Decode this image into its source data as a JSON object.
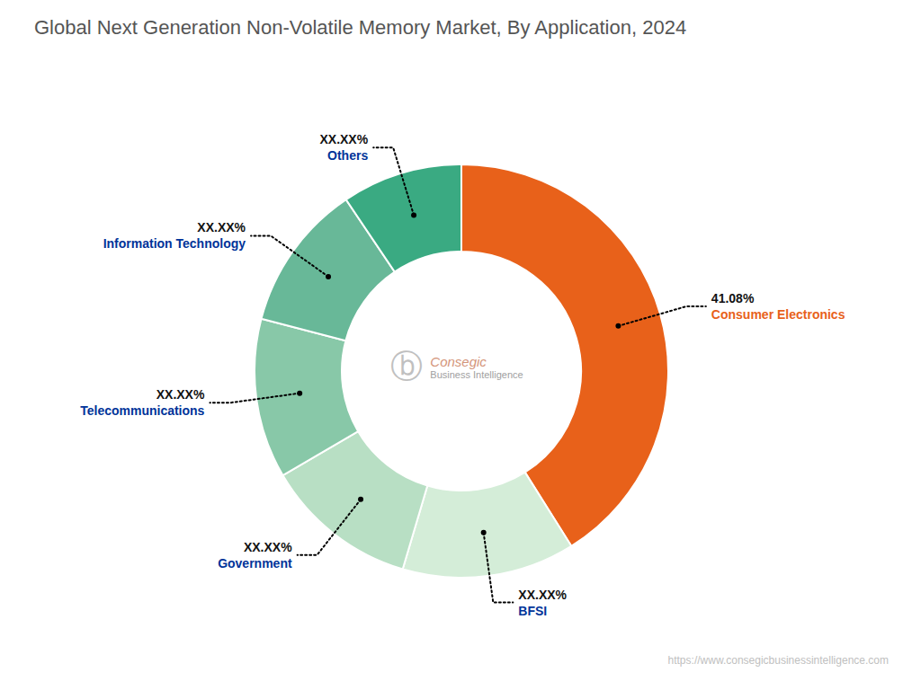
{
  "chart_data": {
    "type": "pie",
    "title": "Global Next Generation Non-Volatile Memory Market, By Application, 2024",
    "categories": [
      "Consumer Electronics",
      "BFSI",
      "Government",
      "Telecommunications",
      "Information Technology",
      "Others"
    ],
    "values": [
      41.08,
      13.5,
      12.0,
      12.5,
      11.5,
      9.42
    ],
    "value_labels": [
      "41.08%",
      "XX.XX%",
      "XX.XX%",
      "XX.XX%",
      "XX.XX%",
      "XX.XX%"
    ],
    "colors": [
      "#E8611A",
      "#d4edd8",
      "#b8dfc4",
      "#88c8a8",
      "#68b898",
      "#3aaa82"
    ],
    "data_labels": true,
    "annotations": [
      "ⓑ",
      "Consegic",
      "Business Intelligence",
      "https://www.consegicbusinessintelligence.com"
    ]
  }
}
